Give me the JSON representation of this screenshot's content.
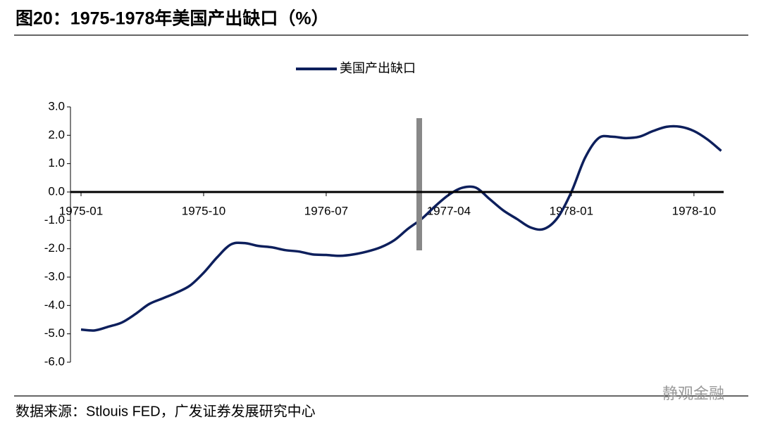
{
  "chart_data": {
    "type": "line",
    "title": "图20：1975-1978年美国产出缺口（%）",
    "source": "数据来源：Stlouis FED，广发证券发展研究中心",
    "watermark": "静观金融",
    "categories": [
      "1975-01",
      null,
      null,
      null,
      null,
      null,
      null,
      null,
      null,
      "1975-10",
      null,
      null,
      null,
      null,
      null,
      null,
      null,
      null,
      "1976-07",
      null,
      null,
      null,
      null,
      null,
      null,
      null,
      null,
      "1977-04",
      null,
      null,
      null,
      null,
      null,
      null,
      null,
      null,
      "1978-01",
      null,
      null,
      null,
      null,
      null,
      null,
      null,
      null,
      "1978-10",
      null,
      null
    ],
    "series": [
      {
        "name": "美国产出缺口",
        "color": "#0d1f5c",
        "values": [
          -4.85,
          -4.88,
          -4.75,
          -4.6,
          -4.3,
          -3.95,
          -3.75,
          -3.55,
          -3.3,
          -2.85,
          -2.3,
          -1.85,
          -1.8,
          -1.9,
          -1.95,
          -2.05,
          -2.1,
          -2.2,
          -2.22,
          -2.25,
          -2.2,
          -2.1,
          -1.95,
          -1.7,
          -1.3,
          -0.95,
          -0.5,
          -0.1,
          0.15,
          0.15,
          -0.25,
          -0.65,
          -0.95,
          -1.25,
          -1.3,
          -0.9,
          0.0,
          1.2,
          1.9,
          1.95,
          1.9,
          1.95,
          2.15,
          2.3,
          2.3,
          2.15,
          1.85,
          1.45
        ]
      }
    ],
    "ylim": [
      -6,
      3
    ],
    "yticks": [
      {
        "value": -6,
        "label": "-6.0"
      },
      {
        "value": -5,
        "label": "-5.0"
      },
      {
        "value": -4,
        "label": "-4.0"
      },
      {
        "value": -3,
        "label": "-3.0"
      },
      {
        "value": -2,
        "label": "-2.0"
      },
      {
        "value": -1,
        "label": "-1.0"
      },
      {
        "value": 0,
        "label": "0.0"
      },
      {
        "value": 1,
        "label": "1.0"
      },
      {
        "value": 2,
        "label": "2.0"
      },
      {
        "value": 3,
        "label": "3.0"
      }
    ],
    "legend": "top"
  }
}
